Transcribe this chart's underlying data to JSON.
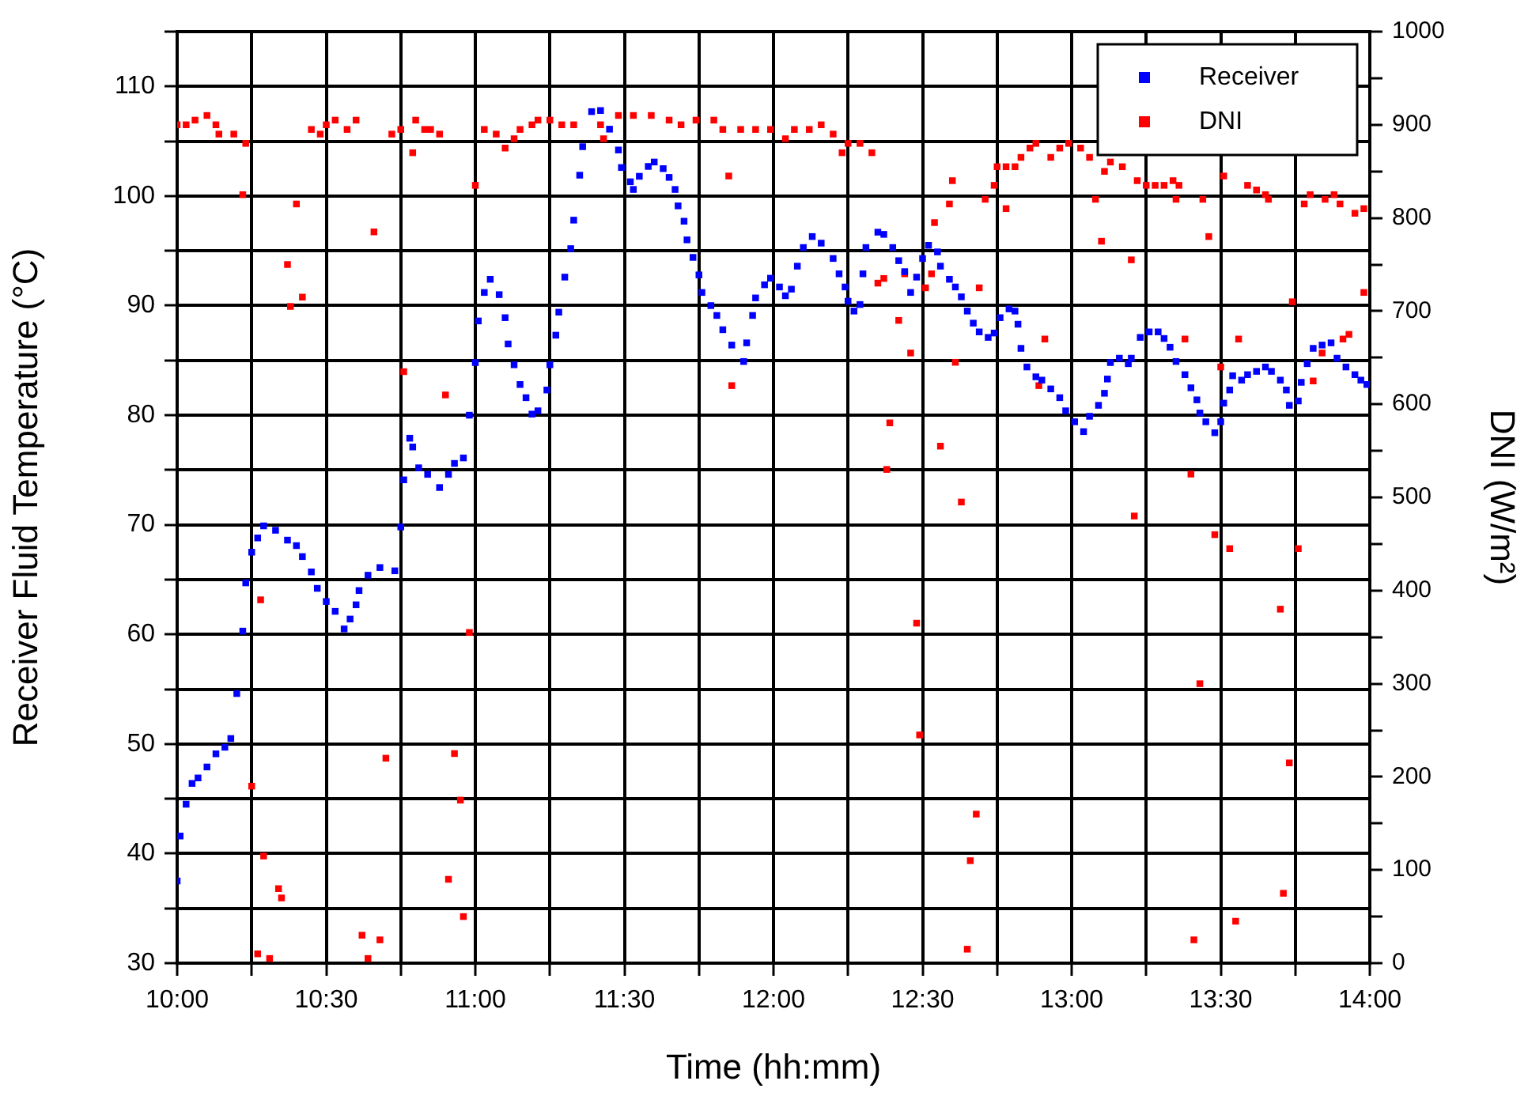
{
  "chart_data": {
    "type": "scatter",
    "xlabel": "Time (hh:mm)",
    "ylabel": "Receiver Fluid Temperature (°C)",
    "y2label": "DNI (W/m²)",
    "xlim": [
      10,
      14
    ],
    "xticks": [
      {
        "value": 10,
        "label": "10:00"
      },
      {
        "value": 10.25,
        "label": null
      },
      {
        "value": 10.5,
        "label": "10:30"
      },
      {
        "value": 10.75,
        "label": null
      },
      {
        "value": 11,
        "label": "11:00"
      },
      {
        "value": 11.25,
        "label": null
      },
      {
        "value": 11.5,
        "label": "11:30"
      },
      {
        "value": 11.75,
        "label": null
      },
      {
        "value": 12,
        "label": "12:00"
      },
      {
        "value": 12.25,
        "label": null
      },
      {
        "value": 12.5,
        "label": "12:30"
      },
      {
        "value": 12.75,
        "label": null
      },
      {
        "value": 13,
        "label": "13:00"
      },
      {
        "value": 13.25,
        "label": null
      },
      {
        "value": 13.5,
        "label": "13:30"
      },
      {
        "value": 13.75,
        "label": null
      },
      {
        "value": 14,
        "label": "14:00"
      }
    ],
    "ylim": [
      30,
      115
    ],
    "yticks": [
      30,
      {
        "value": 35,
        "label": null
      },
      40,
      {
        "value": 45,
        "label": null
      },
      50,
      {
        "value": 55,
        "label": null
      },
      60,
      {
        "value": 65,
        "label": null
      },
      70,
      {
        "value": 75,
        "label": null
      },
      80,
      {
        "value": 85,
        "label": null
      },
      90,
      {
        "value": 95,
        "label": null
      },
      100,
      {
        "value": 105,
        "label": null
      },
      110,
      {
        "value": 115,
        "label": null
      }
    ],
    "y2lim": [
      0,
      1000
    ],
    "y2ticks": [
      0,
      {
        "value": 50,
        "label": null
      },
      100,
      {
        "value": 150,
        "label": null
      },
      200,
      {
        "value": 250,
        "label": null
      },
      300,
      {
        "value": 350,
        "label": null
      },
      400,
      {
        "value": 450,
        "label": null
      },
      500,
      {
        "value": 550,
        "label": null
      },
      600,
      {
        "value": 650,
        "label": null
      },
      700,
      {
        "value": 750,
        "label": null
      },
      800,
      {
        "value": 850,
        "label": null
      },
      900,
      {
        "value": 950,
        "label": null
      },
      1000
    ],
    "grid": true,
    "legend": "top right",
    "marker": "square",
    "series": [
      {
        "name": "Receiver",
        "color": "#0000ff",
        "x": [
          10.0,
          10.01,
          10.03,
          10.05,
          10.07,
          10.1,
          10.13,
          10.16,
          10.18,
          10.2,
          10.22,
          10.23,
          10.25,
          10.27,
          10.29,
          10.33,
          10.37,
          10.4,
          10.42,
          10.45,
          10.47,
          10.5,
          10.53,
          10.56,
          10.58,
          10.6,
          10.61,
          10.64,
          10.68,
          10.73,
          10.75,
          10.76,
          10.78,
          10.79,
          10.81,
          10.84,
          10.88,
          10.91,
          10.93,
          10.96,
          10.98,
          11.0,
          11.01,
          11.03,
          11.05,
          11.08,
          11.1,
          11.11,
          11.13,
          11.15,
          11.17,
          11.19,
          11.21,
          11.24,
          11.25,
          11.27,
          11.28,
          11.3,
          11.32,
          11.33,
          11.35,
          11.36,
          11.39,
          11.42,
          11.45,
          11.48,
          11.49,
          11.52,
          11.53,
          11.55,
          11.58,
          11.6,
          11.63,
          11.65,
          11.67,
          11.68,
          11.7,
          11.71,
          11.73,
          11.75,
          11.76,
          11.79,
          11.81,
          11.83,
          11.86,
          11.9,
          11.91,
          11.93,
          11.94,
          11.97,
          11.99,
          12.02,
          12.04,
          12.06,
          12.08,
          12.1,
          12.13,
          12.16,
          12.2,
          12.22,
          12.24,
          12.25,
          12.27,
          12.29,
          12.3,
          12.31,
          12.35,
          12.37,
          12.4,
          12.42,
          12.44,
          12.46,
          12.48,
          12.5,
          12.52,
          12.55,
          12.56,
          12.59,
          12.61,
          12.63,
          12.65,
          12.67,
          12.69,
          12.72,
          12.74,
          12.76,
          12.79,
          12.81,
          12.82,
          12.83,
          12.85,
          12.88,
          12.9,
          12.93,
          12.96,
          12.98,
          13.01,
          13.04,
          13.06,
          13.09,
          13.11,
          13.12,
          13.13,
          13.16,
          13.19,
          13.2,
          13.23,
          13.26,
          13.29,
          13.31,
          13.33,
          13.35,
          13.38,
          13.4,
          13.42,
          13.43,
          13.45,
          13.48,
          13.5,
          13.51,
          13.53,
          13.54,
          13.57,
          13.59,
          13.62,
          13.65,
          13.67,
          13.7,
          13.72,
          13.73,
          13.76,
          13.77,
          13.79,
          13.81,
          13.84,
          13.87,
          13.89,
          13.92,
          13.95,
          13.97,
          13.99
        ],
        "values": [
          37.5,
          41.6,
          44.5,
          46.4,
          46.9,
          47.9,
          49.1,
          49.7,
          50.5,
          54.6,
          60.3,
          64.7,
          67.5,
          68.8,
          69.9,
          69.5,
          68.6,
          68.1,
          67.1,
          65.7,
          64.2,
          63.0,
          62.1,
          60.5,
          61.4,
          62.7,
          64.0,
          65.4,
          66.1,
          65.8,
          69.8,
          74.1,
          77.9,
          77.1,
          75.2,
          74.6,
          73.4,
          74.6,
          75.6,
          76.1,
          80.0,
          84.8,
          88.6,
          91.2,
          92.4,
          91.0,
          88.9,
          86.5,
          84.6,
          82.8,
          81.6,
          80.1,
          80.4,
          82.3,
          84.6,
          87.3,
          89.4,
          92.6,
          95.2,
          97.8,
          101.9,
          104.5,
          107.7,
          107.8,
          106.1,
          104.2,
          102.6,
          101.3,
          100.6,
          101.8,
          102.7,
          103.1,
          102.5,
          101.7,
          100.6,
          99.1,
          97.7,
          96.0,
          94.4,
          92.8,
          91.2,
          90.0,
          89.1,
          87.8,
          86.4,
          84.9,
          86.6,
          89.1,
          90.7,
          91.9,
          92.5,
          91.7,
          90.9,
          91.5,
          93.6,
          95.3,
          96.3,
          95.7,
          94.3,
          92.9,
          91.7,
          90.4,
          89.5,
          90.1,
          92.9,
          95.3,
          96.7,
          96.5,
          95.3,
          94.1,
          93.1,
          91.2,
          92.6,
          94.3,
          95.5,
          94.9,
          93.6,
          92.4,
          91.7,
          90.8,
          89.5,
          88.4,
          87.6,
          87.1,
          87.5,
          88.9,
          89.7,
          89.5,
          88.3,
          86.1,
          84.4,
          83.5,
          83.2,
          82.4,
          81.6,
          80.4,
          79.4,
          78.5,
          79.9,
          80.9,
          82.0,
          83.3,
          84.8,
          85.2,
          84.7,
          85.2,
          87.1,
          87.6,
          87.6,
          87.0,
          86.2,
          84.9,
          83.7,
          82.5,
          81.4,
          80.2,
          79.4,
          78.4,
          79.4,
          81.1,
          82.3,
          83.6,
          83.2,
          83.7,
          84.0,
          84.4,
          84.0,
          83.2,
          82.3,
          80.9,
          81.3,
          83.0,
          84.7,
          86.1,
          86.4,
          86.6,
          85.2,
          84.4,
          83.7,
          83.2,
          82.8
        ]
      },
      {
        "name": "DNI",
        "color": "#ff0000",
        "axis": "y2",
        "x": [
          10.0,
          10.03,
          10.06,
          10.1,
          10.13,
          10.14,
          10.19,
          10.22,
          10.23,
          10.25,
          10.27,
          10.28,
          10.29,
          10.31,
          10.34,
          10.35,
          10.37,
          10.38,
          10.4,
          10.42,
          10.45,
          10.48,
          10.5,
          10.53,
          10.57,
          10.6,
          10.62,
          10.64,
          10.66,
          10.68,
          10.7,
          10.72,
          10.75,
          10.76,
          10.79,
          10.8,
          10.83,
          10.85,
          10.88,
          10.9,
          10.91,
          10.93,
          10.95,
          10.96,
          10.98,
          11.0,
          11.03,
          11.07,
          11.1,
          11.13,
          11.15,
          11.19,
          11.21,
          11.25,
          11.29,
          11.33,
          11.42,
          11.43,
          11.48,
          11.53,
          11.59,
          11.65,
          11.69,
          11.74,
          11.8,
          11.83,
          11.85,
          11.86,
          11.89,
          11.94,
          11.99,
          12.04,
          12.07,
          12.12,
          12.16,
          12.2,
          12.23,
          12.25,
          12.29,
          12.33,
          12.35,
          12.37,
          12.38,
          12.39,
          12.42,
          12.44,
          12.46,
          12.48,
          12.49,
          12.51,
          12.53,
          12.54,
          12.56,
          12.59,
          12.6,
          12.61,
          12.63,
          12.65,
          12.66,
          12.68,
          12.69,
          12.71,
          12.74,
          12.75,
          12.78,
          12.78,
          12.81,
          12.83,
          12.86,
          12.88,
          12.89,
          12.91,
          12.93,
          12.96,
          12.99,
          13.03,
          13.06,
          13.08,
          13.1,
          13.11,
          13.13,
          13.17,
          13.2,
          13.21,
          13.22,
          13.25,
          13.28,
          13.31,
          13.34,
          13.35,
          13.36,
          13.38,
          13.4,
          13.41,
          13.43,
          13.44,
          13.46,
          13.48,
          13.5,
          13.51,
          13.53,
          13.55,
          13.56,
          13.59,
          13.62,
          13.65,
          13.66,
          13.7,
          13.71,
          13.73,
          13.74,
          13.76,
          13.78,
          13.8,
          13.81,
          13.84,
          13.85,
          13.88,
          13.9,
          13.91,
          13.93,
          13.95,
          13.98,
          13.98
        ],
        "values": [
          900,
          900,
          905,
          910,
          900,
          890,
          890,
          825,
          880,
          190,
          10,
          390,
          115,
          5,
          80,
          70,
          750,
          705,
          815,
          715,
          895,
          890,
          900,
          905,
          895,
          905,
          30,
          5,
          785,
          25,
          220,
          890,
          895,
          635,
          870,
          905,
          895,
          895,
          890,
          610,
          90,
          225,
          175,
          50,
          355,
          835,
          895,
          890,
          875,
          885,
          895,
          900,
          905,
          905,
          900,
          900,
          900,
          885,
          910,
          910,
          910,
          905,
          900,
          905,
          905,
          895,
          845,
          620,
          895,
          895,
          895,
          885,
          895,
          895,
          900,
          890,
          870,
          880,
          880,
          870,
          730,
          735,
          530,
          580,
          690,
          740,
          655,
          365,
          245,
          725,
          740,
          795,
          555,
          815,
          840,
          645,
          495,
          15,
          110,
          160,
          725,
          820,
          835,
          855,
          855,
          810,
          855,
          865,
          875,
          880,
          620,
          670,
          865,
          875,
          880,
          875,
          865,
          820,
          775,
          850,
          860,
          855,
          755,
          480,
          840,
          835,
          835,
          835,
          840,
          820,
          835,
          670,
          525,
          25,
          300,
          820,
          780,
          460,
          640,
          845,
          445,
          45,
          670,
          835,
          830,
          825,
          820,
          380,
          75,
          215,
          710,
          445,
          815,
          825,
          625,
          655,
          820,
          825,
          815,
          670,
          675,
          805,
          810,
          720
        ]
      }
    ]
  }
}
